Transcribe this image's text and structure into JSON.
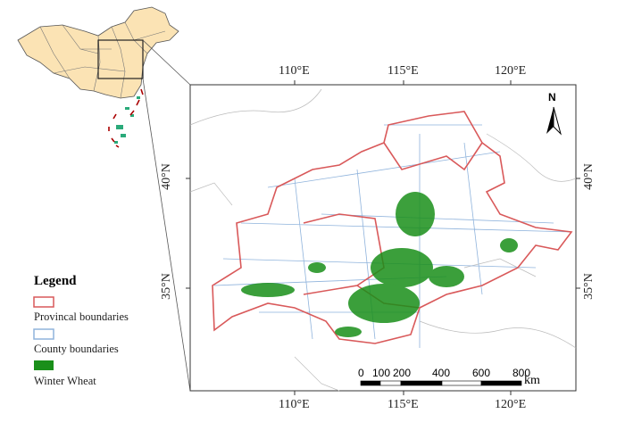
{
  "axes": {
    "top_ticks": [
      "110°E",
      "115°E",
      "120°E"
    ],
    "bottom_ticks": [
      "110°E",
      "115°E",
      "120°E"
    ],
    "left_ticks": [
      "40°N",
      "35°N"
    ],
    "right_ticks": [
      "40°N",
      "35°N"
    ]
  },
  "north_arrow": {
    "label": "N"
  },
  "scale_bar": {
    "labels": [
      "0",
      "100",
      "200",
      "400",
      "600",
      "800"
    ],
    "unit": "km"
  },
  "legend": {
    "title": "Legend",
    "items": [
      {
        "label": "Provincal boundaries",
        "color": "#d9595a"
      },
      {
        "label": "County boundaries",
        "color": "#8fb3dc"
      },
      {
        "label": "Winter Wheat",
        "color": "#1a8f1a"
      }
    ]
  },
  "colors": {
    "china_fill": "#fbe3b4",
    "wheat": "#1a8f1a",
    "province": "#d9595a",
    "county": "#8fb3dc",
    "context": "#bbbbbb"
  }
}
